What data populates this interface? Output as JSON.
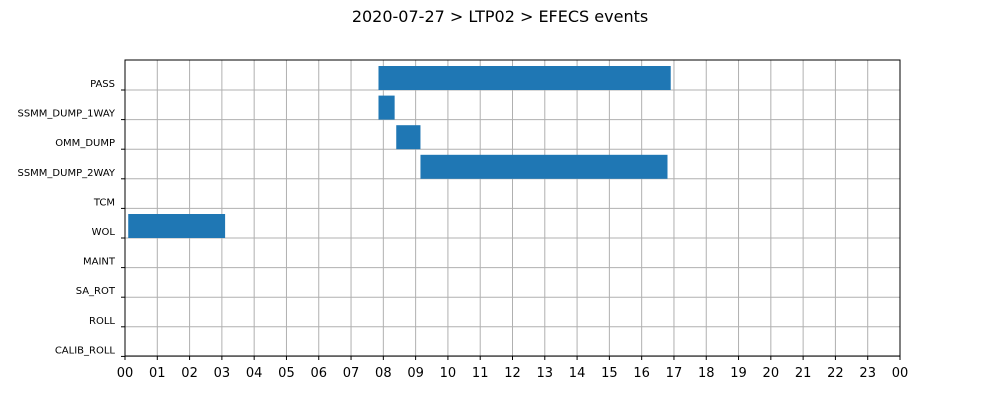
{
  "chart_data": {
    "type": "bar",
    "orientation": "horizontal-gantt",
    "title": "2020-07-27 > LTP02 > EFECS events",
    "xlabel": "",
    "ylabel": "",
    "x_unit": "hours",
    "xlim": [
      0,
      24
    ],
    "grid": true,
    "bar_color": "#1f77b4",
    "categories": [
      "PASS",
      "SSMM_DUMP_1WAY",
      "OMM_DUMP",
      "SSMM_DUMP_2WAY",
      "TCM",
      "WOL",
      "MAINT",
      "SA_ROT",
      "ROLL",
      "CALIB_ROLL"
    ],
    "x_tick_labels": [
      "00",
      "01",
      "02",
      "03",
      "04",
      "05",
      "06",
      "07",
      "08",
      "09",
      "10",
      "11",
      "12",
      "13",
      "14",
      "15",
      "16",
      "17",
      "18",
      "19",
      "20",
      "21",
      "22",
      "23",
      "00"
    ],
    "events": [
      {
        "category": "PASS",
        "start": 7.85,
        "end": 16.9
      },
      {
        "category": "SSMM_DUMP_1WAY",
        "start": 7.85,
        "end": 8.35
      },
      {
        "category": "OMM_DUMP",
        "start": 8.4,
        "end": 9.15
      },
      {
        "category": "SSMM_DUMP_2WAY",
        "start": 9.15,
        "end": 16.8
      },
      {
        "category": "WOL",
        "start": 0.1,
        "end": 3.1
      }
    ]
  }
}
